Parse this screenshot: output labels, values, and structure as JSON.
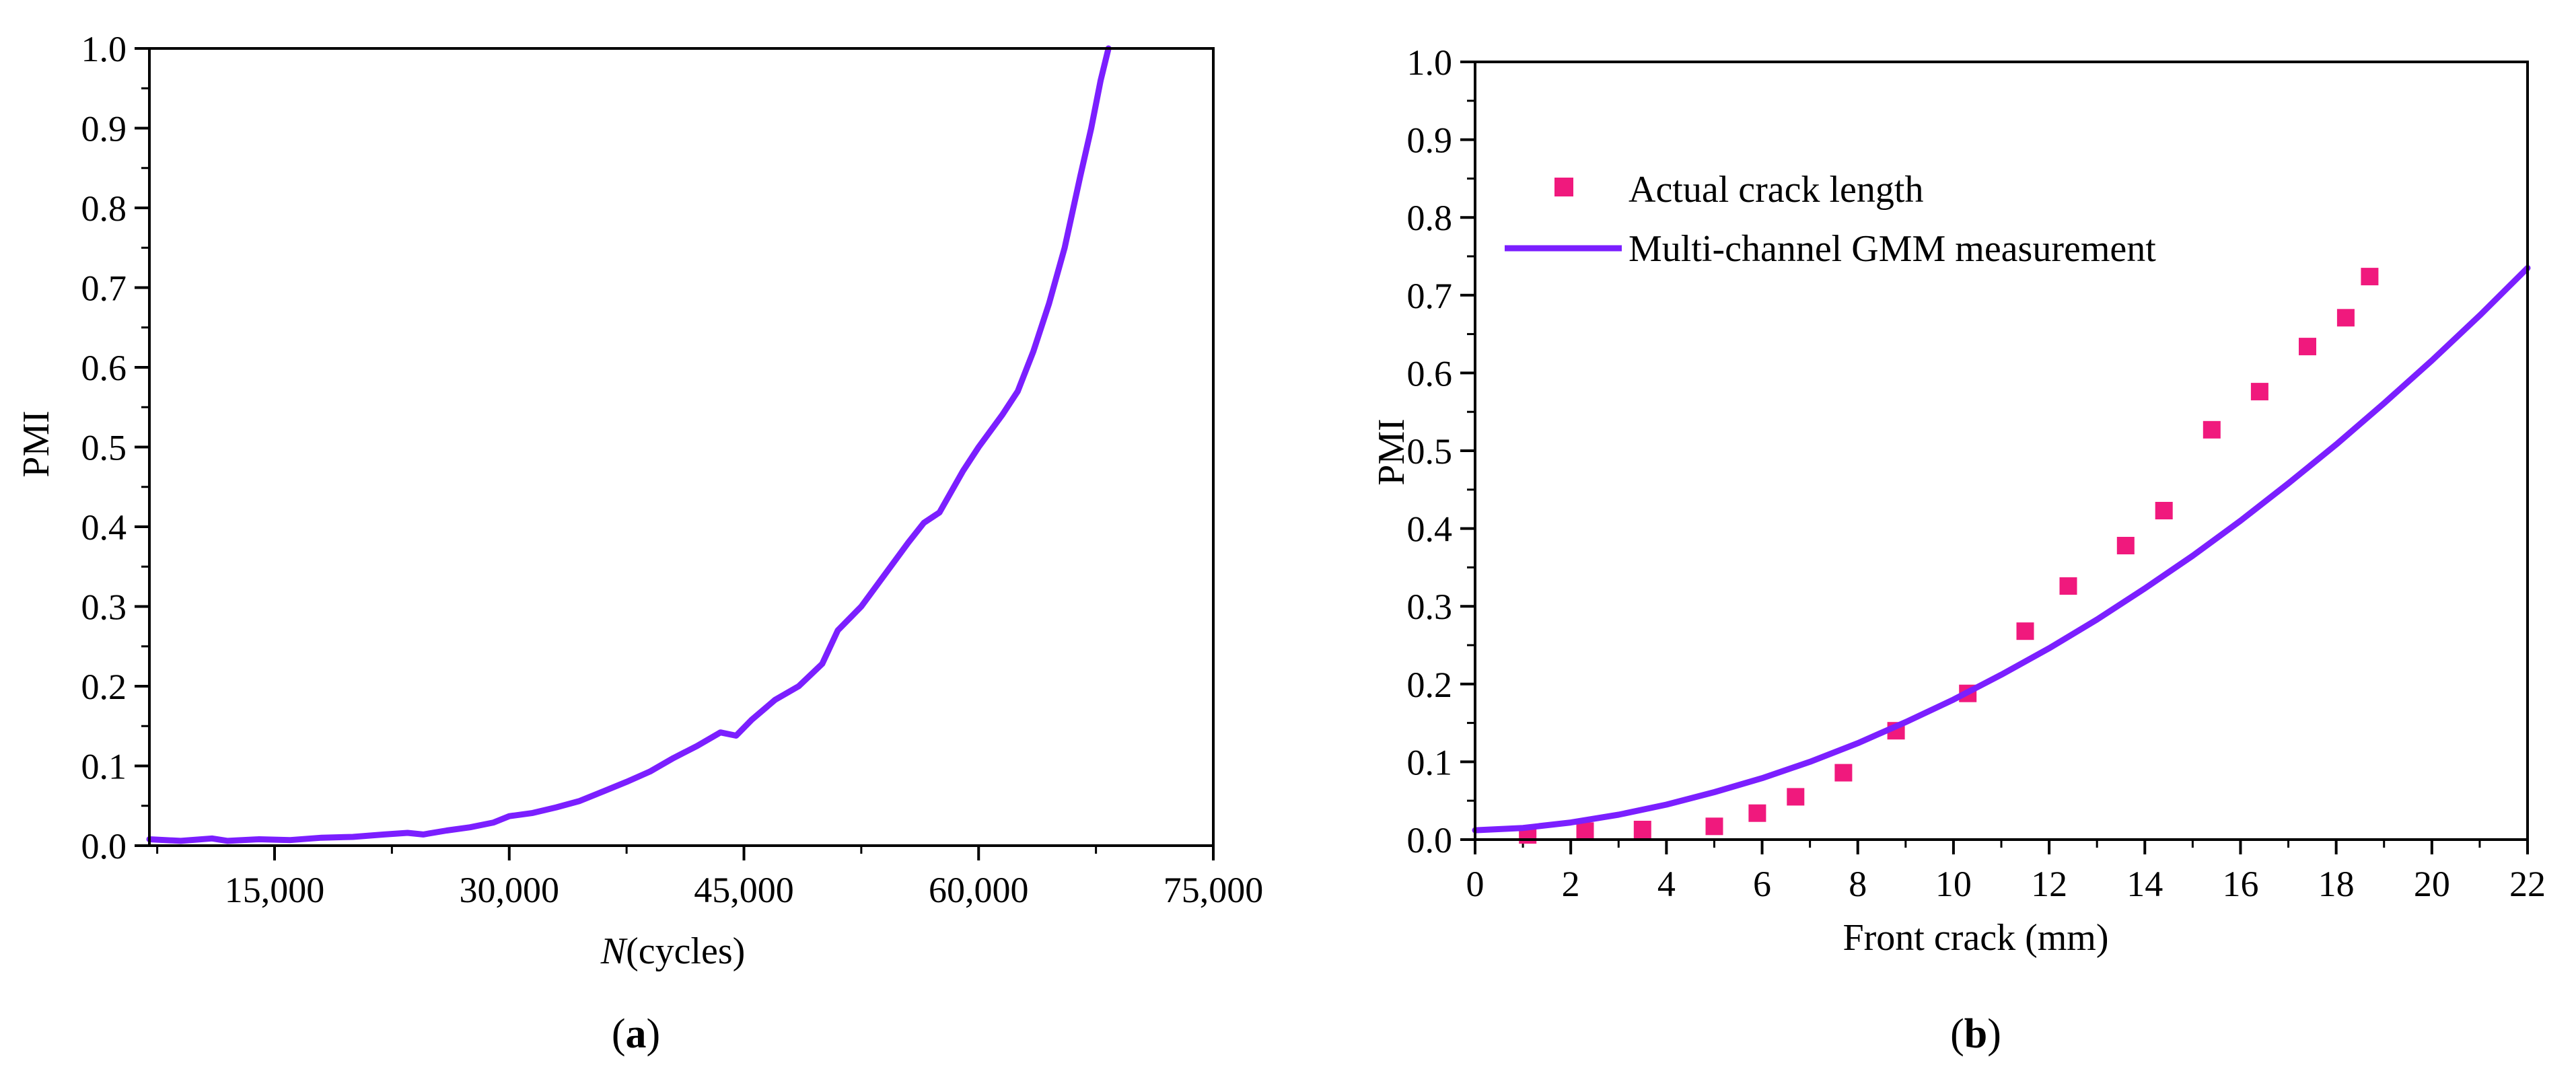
{
  "colors": {
    "line": "#7b1fff",
    "marker": "#f0197d",
    "axis": "#000000"
  },
  "chart_data": [
    {
      "panel": "a",
      "caption_open": "(",
      "caption_letter": "a",
      "caption_close": ")",
      "type": "line",
      "title": "",
      "xlabel_italic": "N",
      "xlabel_rest": "(cycles)",
      "ylabel": "PMI",
      "xlim": [
        7000,
        75000
      ],
      "ylim": [
        0,
        1.0
      ],
      "xticks": [
        15000,
        30000,
        45000,
        60000,
        75000
      ],
      "xtick_labels": [
        "15,000",
        "30,000",
        "45,000",
        "60,000",
        "75,000"
      ],
      "yticks": [
        0,
        0.1,
        0.2,
        0.3,
        0.4,
        0.5,
        0.6,
        0.7,
        0.8,
        0.9,
        1.0
      ],
      "ytick_labels": [
        "0.0",
        "0.1",
        "0.2",
        "0.3",
        "0.4",
        "0.5",
        "0.6",
        "0.7",
        "0.8",
        "0.9",
        "1.0"
      ],
      "series": [
        {
          "name": "PMI",
          "x": [
            7000,
            9000,
            11000,
            12000,
            14000,
            16000,
            18000,
            20000,
            22000,
            23500,
            24500,
            26000,
            27500,
            29000,
            30000,
            31500,
            33000,
            34500,
            36000,
            37500,
            39000,
            40500,
            42000,
            43500,
            44500,
            45500,
            47000,
            48500,
            50000,
            51000,
            52500,
            54000,
            55500,
            56500,
            57500,
            59000,
            60000,
            61500,
            62500,
            63500,
            64500,
            65500,
            66500,
            67200,
            67800,
            68300
          ],
          "y": [
            0.008,
            0.006,
            0.009,
            0.006,
            0.008,
            0.007,
            0.01,
            0.011,
            0.014,
            0.016,
            0.014,
            0.019,
            0.023,
            0.029,
            0.037,
            0.041,
            0.048,
            0.056,
            0.068,
            0.08,
            0.093,
            0.11,
            0.125,
            0.142,
            0.138,
            0.158,
            0.183,
            0.2,
            0.228,
            0.27,
            0.3,
            0.34,
            0.38,
            0.405,
            0.418,
            0.47,
            0.5,
            0.54,
            0.57,
            0.62,
            0.68,
            0.75,
            0.84,
            0.9,
            0.96,
            1.0
          ]
        }
      ]
    },
    {
      "panel": "b",
      "caption_open": "(",
      "caption_letter": "b",
      "caption_close": ")",
      "type": "scatter+line",
      "title": "",
      "xlabel": "Front crack (mm)",
      "ylabel": "PMI",
      "xlim": [
        0,
        22
      ],
      "ylim": [
        0,
        1.0
      ],
      "xticks": [
        0,
        2,
        4,
        6,
        8,
        10,
        12,
        14,
        16,
        18,
        20,
        22
      ],
      "xtick_labels": [
        "0",
        "2",
        "4",
        "6",
        "8",
        "10",
        "12",
        "14",
        "16",
        "18",
        "20",
        "22"
      ],
      "yticks": [
        0,
        0.1,
        0.2,
        0.3,
        0.4,
        0.5,
        0.6,
        0.7,
        0.8,
        0.9,
        1.0
      ],
      "ytick_labels": [
        "0.0",
        "0.1",
        "0.2",
        "0.3",
        "0.4",
        "0.5",
        "0.6",
        "0.7",
        "0.8",
        "0.9",
        "1.0"
      ],
      "legend_position": "top-left",
      "series": [
        {
          "name": "Actual crack length",
          "kind": "scatter",
          "x": [
            1.1,
            2.3,
            3.5,
            5.0,
            5.9,
            6.7,
            7.7,
            8.8,
            10.3,
            11.5,
            12.4,
            13.6,
            14.4,
            15.4,
            16.4,
            17.4,
            18.2,
            18.7
          ],
          "y": [
            0.006,
            0.011,
            0.013,
            0.017,
            0.034,
            0.055,
            0.086,
            0.14,
            0.188,
            0.268,
            0.326,
            0.378,
            0.423,
            0.527,
            0.576,
            0.634,
            0.671,
            0.724
          ]
        },
        {
          "name": "Multi-channel GMM measurement",
          "kind": "line",
          "x": [
            0,
            1,
            2,
            3,
            4,
            5,
            6,
            7,
            8,
            9,
            10,
            11,
            12,
            13,
            14,
            15,
            16,
            17,
            18,
            19,
            20,
            21,
            22
          ],
          "y": [
            0.012,
            0.015,
            0.022,
            0.032,
            0.045,
            0.061,
            0.079,
            0.1,
            0.124,
            0.151,
            0.18,
            0.212,
            0.246,
            0.283,
            0.323,
            0.365,
            0.41,
            0.458,
            0.508,
            0.561,
            0.616,
            0.674,
            0.735
          ]
        }
      ]
    }
  ]
}
